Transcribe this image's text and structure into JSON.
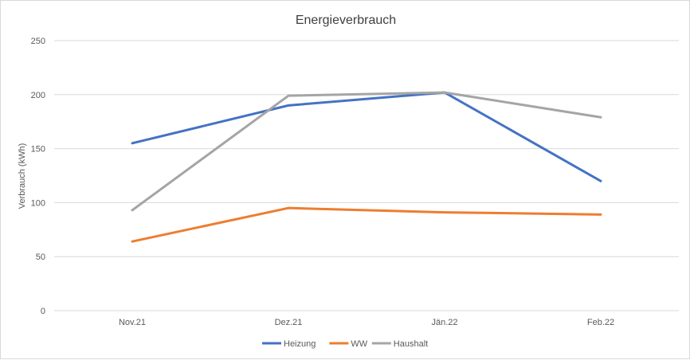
{
  "chart_data": {
    "type": "line",
    "title": "Energieverbrauch",
    "xlabel": "",
    "ylabel": "Verbrauch (kWh)",
    "categories": [
      "Nov.21",
      "Dez.21",
      "Jän.22",
      "Feb.22"
    ],
    "ylim": [
      0,
      250
    ],
    "yticks": [
      0,
      50,
      100,
      150,
      200,
      250
    ],
    "grid": true,
    "legend": "bottom",
    "series": [
      {
        "name": "Heizung",
        "color": "#4472c4",
        "values": [
          155,
          190,
          202,
          120
        ]
      },
      {
        "name": "WW",
        "color": "#ed7d31",
        "values": [
          64,
          95,
          91,
          89
        ]
      },
      {
        "name": "Haushalt",
        "color": "#a5a5a5",
        "values": [
          93,
          199,
          202,
          179
        ]
      }
    ]
  }
}
